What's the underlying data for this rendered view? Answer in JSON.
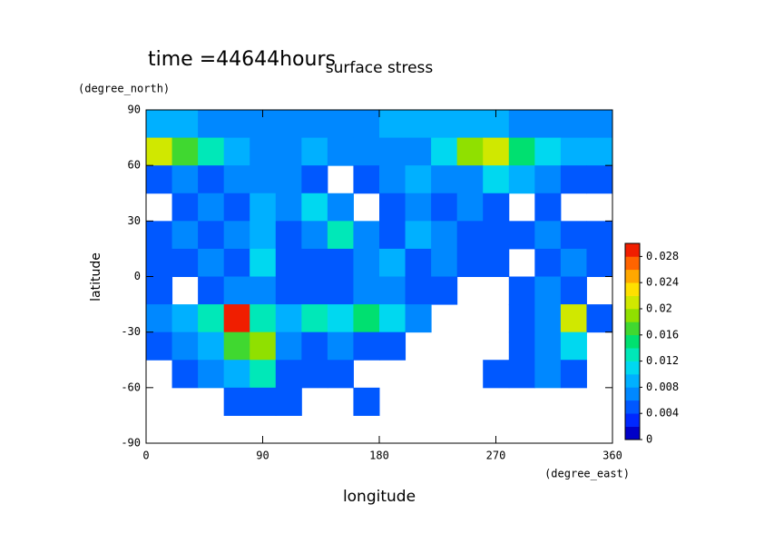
{
  "chart_data": {
    "type": "contour",
    "title": "surface stress",
    "subtitle": "time =44644hours",
    "xlabel": "longitude",
    "xunit": "(degree_east)",
    "ylabel": "latitude",
    "yunit": "(degree_north)",
    "x": [
      10,
      30,
      50,
      70,
      90,
      110,
      130,
      150,
      170,
      190,
      210,
      230,
      250,
      270,
      290,
      310,
      330,
      350
    ],
    "y": [
      82.5,
      67.5,
      52.5,
      37.5,
      22.5,
      7.5,
      -7.5,
      -22.5,
      -37.5,
      -52.5,
      -67.5,
      -82.5
    ],
    "z": [
      [
        0.008,
        0.008,
        0.007,
        0.007,
        0.006,
        0.006,
        0.006,
        0.007,
        0.007,
        0.008,
        0.008,
        0.008,
        0.008,
        0.008,
        0.007,
        0.007,
        0.006,
        0.006
      ],
      [
        0.02,
        0.016,
        0.012,
        0.008,
        0.006,
        0.006,
        0.008,
        0.006,
        0.006,
        0.006,
        0.006,
        0.01,
        0.018,
        0.02,
        0.014,
        0.01,
        0.008,
        0.008
      ],
      [
        0.004,
        0.006,
        0.004,
        0.006,
        0.006,
        0.006,
        0.004,
        0,
        0.004,
        0.006,
        0.008,
        0.006,
        0.006,
        0.01,
        0.008,
        0.006,
        0.004,
        0.004
      ],
      [
        0,
        0.004,
        0.006,
        0.004,
        0.008,
        0.006,
        0.01,
        0.006,
        0,
        0.004,
        0.006,
        0.004,
        0.006,
        0.004,
        0,
        0.004,
        0,
        0
      ],
      [
        0.004,
        0.006,
        0.004,
        0.006,
        0.008,
        0.004,
        0.006,
        0.012,
        0.006,
        0.004,
        0.008,
        0.006,
        0.004,
        0.004,
        0.004,
        0.006,
        0.004,
        0.004
      ],
      [
        0.004,
        0.004,
        0.006,
        0.004,
        0.01,
        0.004,
        0.004,
        0.004,
        0.006,
        0.008,
        0.004,
        0.006,
        0.004,
        0.004,
        0,
        0.004,
        0.006,
        0.004
      ],
      [
        0.004,
        0,
        0.004,
        0.006,
        0.006,
        0.004,
        0.004,
        0.004,
        0.006,
        0.006,
        0.004,
        0.004,
        0,
        0,
        0.004,
        0.006,
        0.004,
        0
      ],
      [
        0.006,
        0.008,
        0.012,
        0.028,
        0.012,
        0.008,
        0.012,
        0.01,
        0.014,
        0.01,
        0.006,
        0,
        0,
        0,
        0.004,
        0.006,
        0.02,
        0.004
      ],
      [
        0.004,
        0.006,
        0.008,
        0.016,
        0.018,
        0.006,
        0.004,
        0.006,
        0.004,
        0.004,
        0,
        0,
        0,
        0,
        0.004,
        0.006,
        0.01,
        0
      ],
      [
        0,
        0.004,
        0.006,
        0.008,
        0.012,
        0.004,
        0.004,
        0.004,
        0,
        0,
        0,
        0,
        0,
        0.004,
        0.004,
        0.006,
        0.004,
        0
      ],
      [
        0,
        0,
        0,
        0.004,
        0.004,
        0.004,
        0,
        0,
        0.004,
        0,
        0,
        0,
        0,
        0,
        0,
        0,
        0,
        0
      ],
      [
        0,
        0,
        0,
        0,
        0,
        0,
        0,
        0,
        0,
        0,
        0,
        0,
        0,
        0,
        0,
        0,
        0,
        0
      ]
    ],
    "xlim": [
      0,
      360
    ],
    "xticks": [
      0,
      90,
      180,
      270,
      360
    ],
    "ylim": [
      -90,
      90
    ],
    "yticks": [
      -90,
      -60,
      -30,
      0,
      30,
      60,
      90
    ],
    "clim": [
      0,
      0.03
    ],
    "cticks": [
      0,
      0.004,
      0.008,
      0.012,
      0.016,
      0.02,
      0.024,
      0.028
    ],
    "colormap": [
      "#0000c8",
      "#0028ff",
      "#0058ff",
      "#0088ff",
      "#00b0ff",
      "#00d8f0",
      "#00e8b8",
      "#00e070",
      "#40d830",
      "#90e000",
      "#d0e800",
      "#ffe000",
      "#ffa800",
      "#ff6400",
      "#f01e00"
    ]
  }
}
